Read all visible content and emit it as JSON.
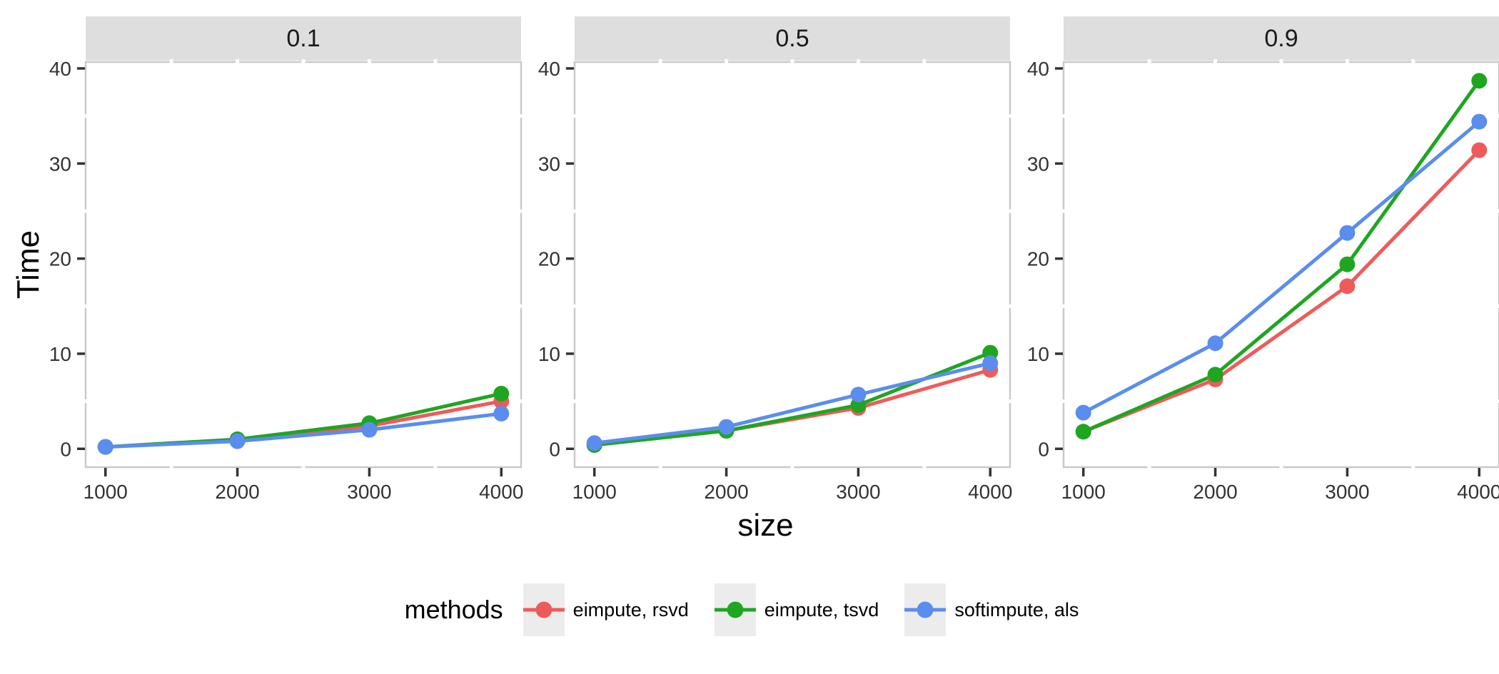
{
  "figure": {
    "background": "#FFFFFF"
  },
  "chart_data": {
    "type": "line",
    "title": "",
    "xlabel": "size",
    "ylabel": "Time",
    "legend_title": "methods",
    "legend_position": "bottom",
    "grid": false,
    "x": [
      1000,
      2000,
      3000,
      4000
    ],
    "x_ticks": [
      1000,
      2000,
      3000,
      4000
    ],
    "y_ticks": [
      0,
      10,
      20,
      30,
      40
    ],
    "x_minor_ticks": [
      1500,
      2500,
      3500
    ],
    "y_minor_ticks": [
      5,
      15,
      25,
      35
    ],
    "xlim": [
      850,
      4150
    ],
    "ylim": [
      -1.93,
      40.67
    ],
    "facets": [
      {
        "label": "0.1",
        "series": [
          {
            "name": "eimpute, rsvd",
            "values": [
              0.2,
              0.9,
              2.4,
              5.0
            ]
          },
          {
            "name": "eimpute, tsvd",
            "values": [
              0.2,
              1.0,
              2.7,
              5.8
            ]
          },
          {
            "name": "softimpute, als",
            "values": [
              0.2,
              0.8,
              2.0,
              3.7
            ]
          }
        ]
      },
      {
        "label": "0.5",
        "series": [
          {
            "name": "eimpute, rsvd",
            "values": [
              0.4,
              1.9,
              4.3,
              8.3
            ]
          },
          {
            "name": "eimpute, tsvd",
            "values": [
              0.4,
              1.9,
              4.6,
              10.1
            ]
          },
          {
            "name": "softimpute, als",
            "values": [
              0.6,
              2.3,
              5.7,
              9.0
            ]
          }
        ]
      },
      {
        "label": "0.9",
        "series": [
          {
            "name": "eimpute, rsvd",
            "values": [
              1.8,
              7.3,
              17.1,
              31.4
            ]
          },
          {
            "name": "eimpute, tsvd",
            "values": [
              1.8,
              7.8,
              19.4,
              38.7
            ]
          },
          {
            "name": "softimpute, als",
            "values": [
              3.8,
              11.1,
              22.7,
              34.4
            ]
          }
        ]
      }
    ],
    "legend": [
      {
        "label": "eimpute, rsvd",
        "color": "#EE5B5B"
      },
      {
        "label": "eimpute, tsvd",
        "color": "#1EA621"
      },
      {
        "label": "softimpute, als",
        "color": "#5A8DEE"
      }
    ],
    "style": {
      "series_colors": [
        "#EE5B5B",
        "#1EA621",
        "#5A8DEE"
      ],
      "strip_bg": "#DEDEDE",
      "panel_border": "#C9C9C9",
      "tick_color": "#333333",
      "minor_notch_color": "#FFFFFF",
      "legend_key_bg": "#ECECEC",
      "line_width": 5,
      "point_radius": 11
    }
  }
}
